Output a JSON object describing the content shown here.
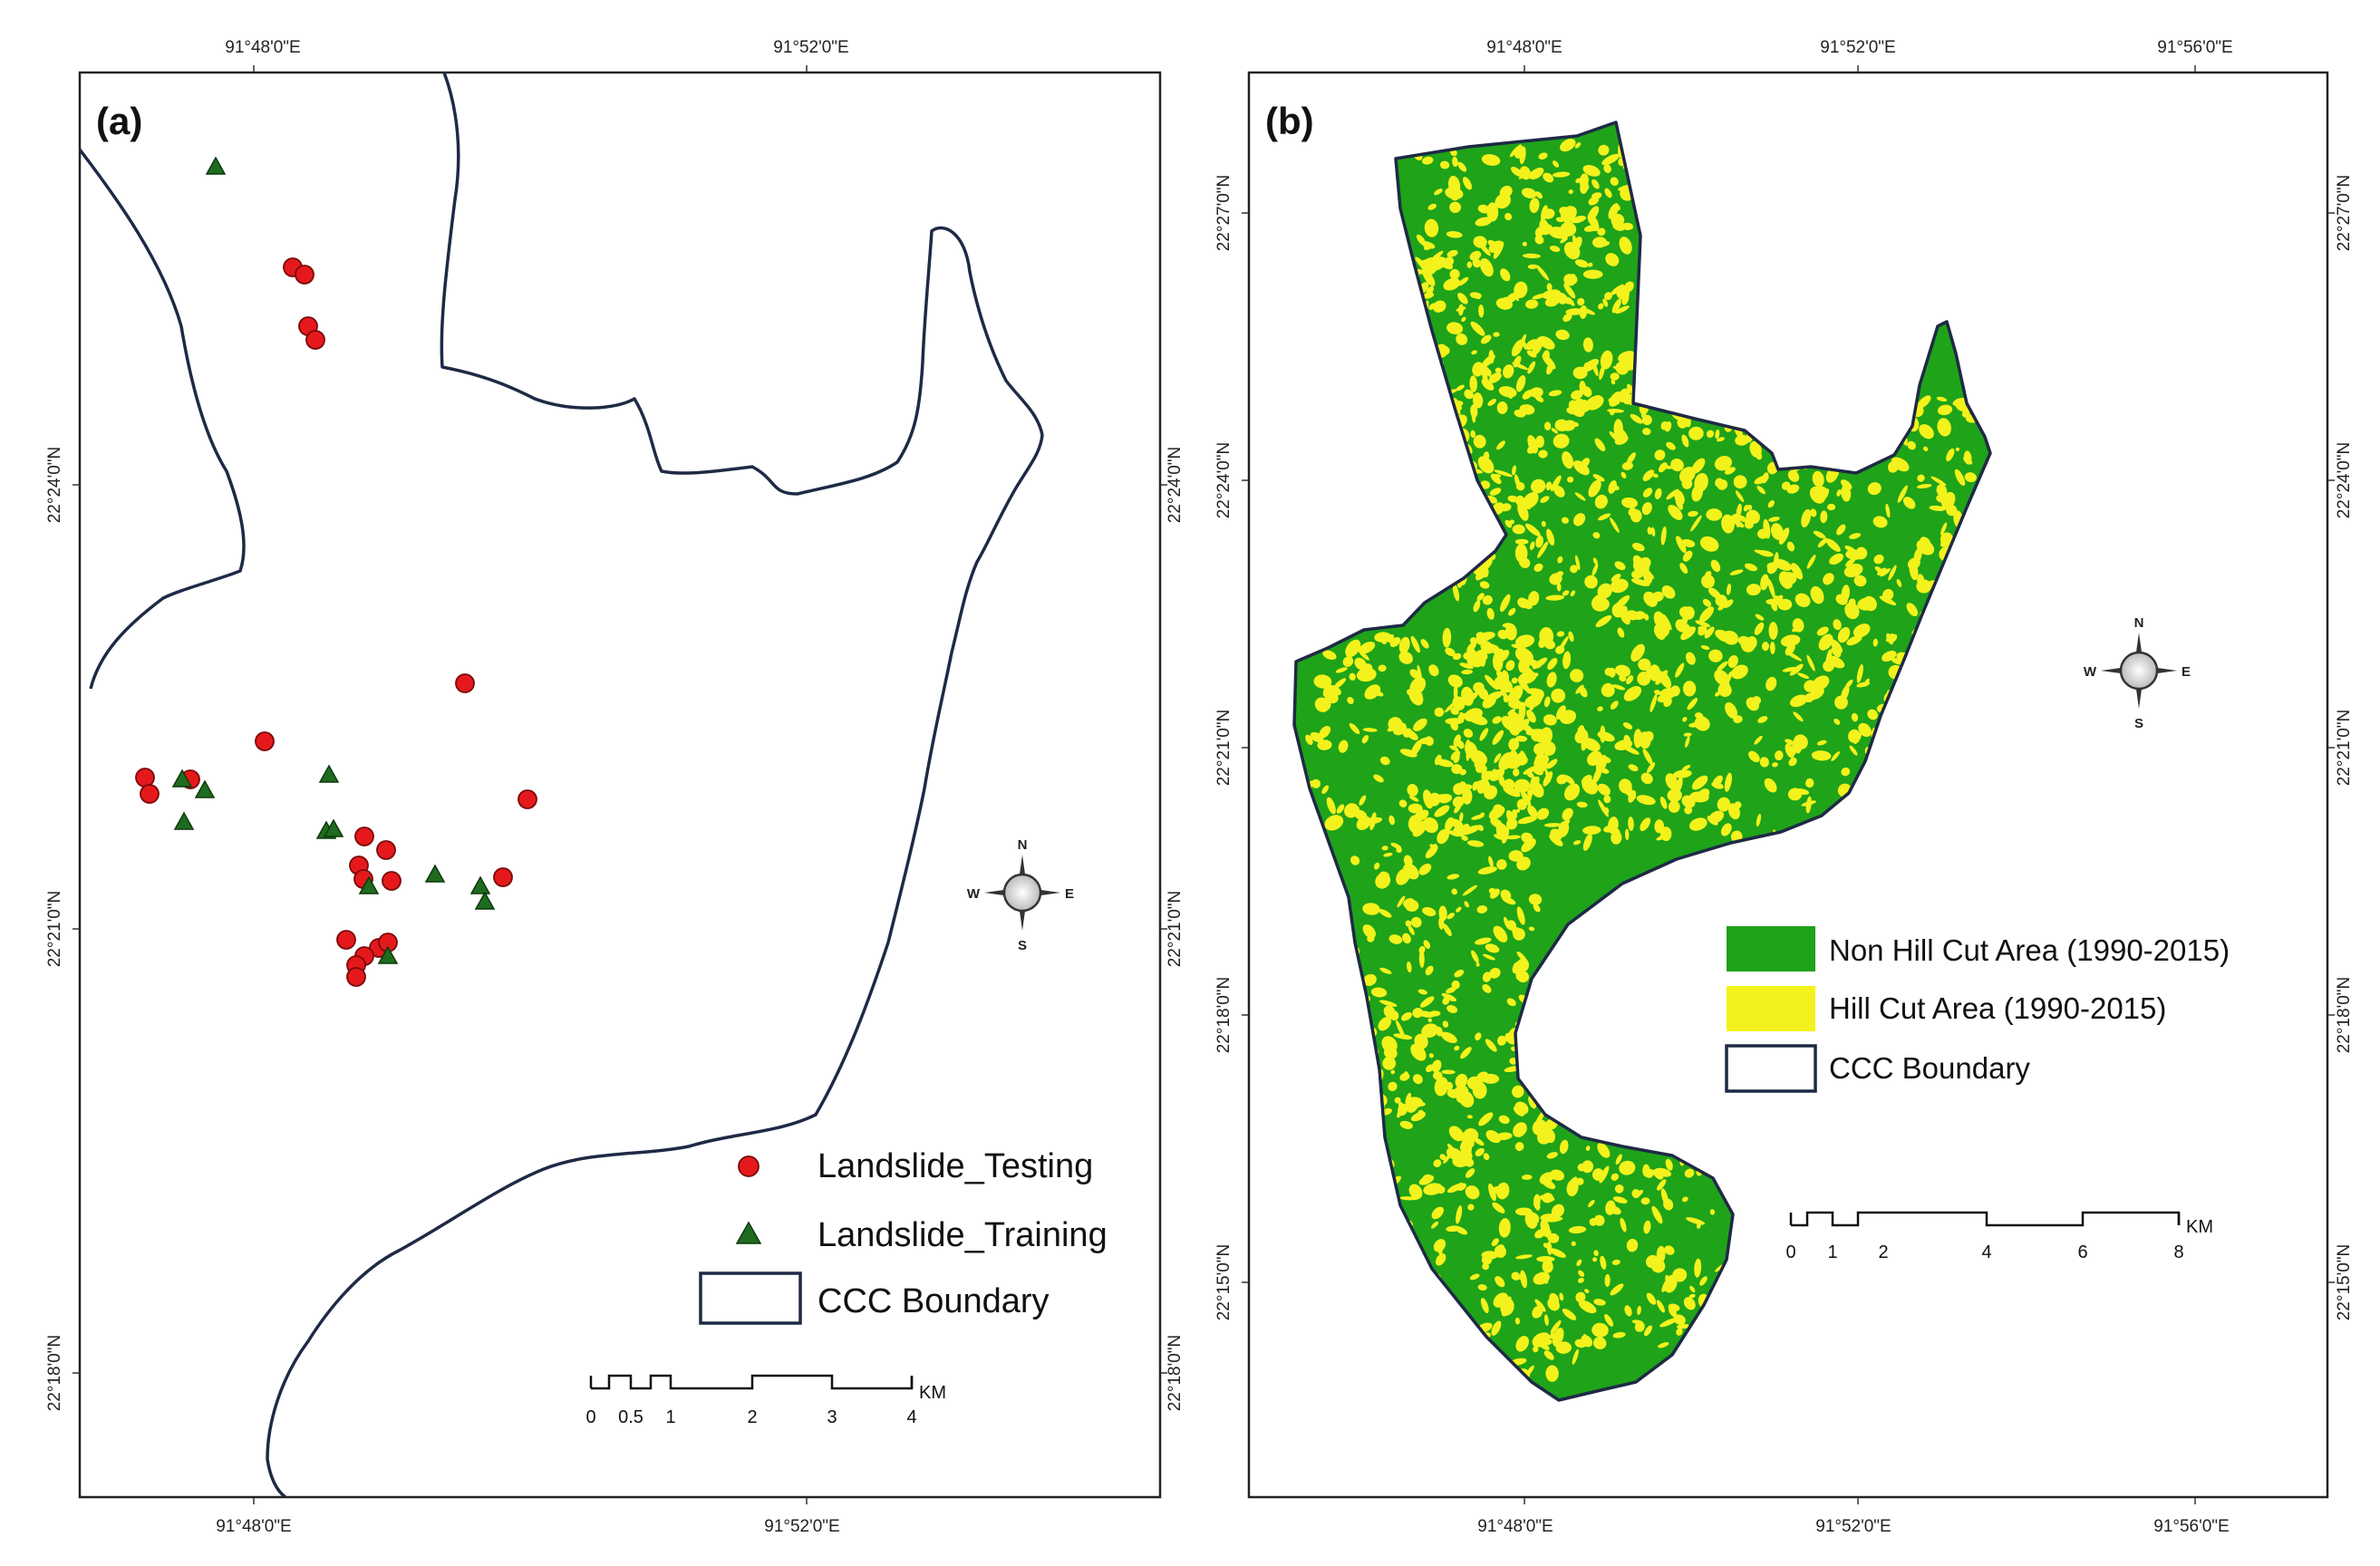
{
  "panel_a": {
    "label": "(a)",
    "top_lon_ticks": [
      "91°48'0\"E",
      "91°52'0\"E"
    ],
    "bottom_lon_ticks": [
      "91°48'0\"E",
      "91°52'0\"E"
    ],
    "left_lat_ticks": [
      "22°24'0\"N",
      "22°21'0\"N",
      "22°18'0\"N"
    ],
    "right_lat_ticks": [
      "22°24'0\"N",
      "22°21'0\"N",
      "22°18'0\"N"
    ],
    "legend": {
      "testing": "Landslide_Testing",
      "training": "Landslide_Training",
      "boundary": "CCC Boundary"
    },
    "scale": {
      "labels": [
        "0",
        "0.5",
        "1",
        "2",
        "3",
        "4"
      ],
      "unit": "KM"
    },
    "compass": {
      "n": "N",
      "s": "S",
      "e": "E",
      "w": "W"
    },
    "colors": {
      "testing": "#e5191c",
      "training": "#1f6b1f",
      "boundary": "#1e2a45"
    }
  },
  "panel_b": {
    "label": "(b)",
    "top_lon_ticks": [
      "91°48'0\"E",
      "91°52'0\"E",
      "91°56'0\"E"
    ],
    "bottom_lon_ticks": [
      "91°48'0\"E",
      "91°52'0\"E",
      "91°56'0\"E"
    ],
    "left_lat_ticks": [
      "22°27'0\"N",
      "22°24'0\"N",
      "22°21'0\"N",
      "22°18'0\"N",
      "22°15'0\"N"
    ],
    "right_lat_ticks": [
      "22°27'0\"N",
      "22°24'0\"N",
      "22°21'0\"N",
      "22°18'0\"N",
      "22°15'0\"N"
    ],
    "legend": {
      "non_hill_cut": "Non Hill Cut Area (1990-2015)",
      "hill_cut": "Hill Cut Area (1990-2015)",
      "boundary": "CCC Boundary"
    },
    "scale": {
      "labels": [
        "0",
        "1",
        "2",
        "4",
        "6",
        "8"
      ],
      "unit": "KM"
    },
    "compass": {
      "n": "N",
      "s": "S",
      "e": "E",
      "w": "W"
    },
    "colors": {
      "non_hill_cut": "#1fa319",
      "hill_cut": "#f3f21c",
      "boundary": "#1e2a45"
    }
  }
}
